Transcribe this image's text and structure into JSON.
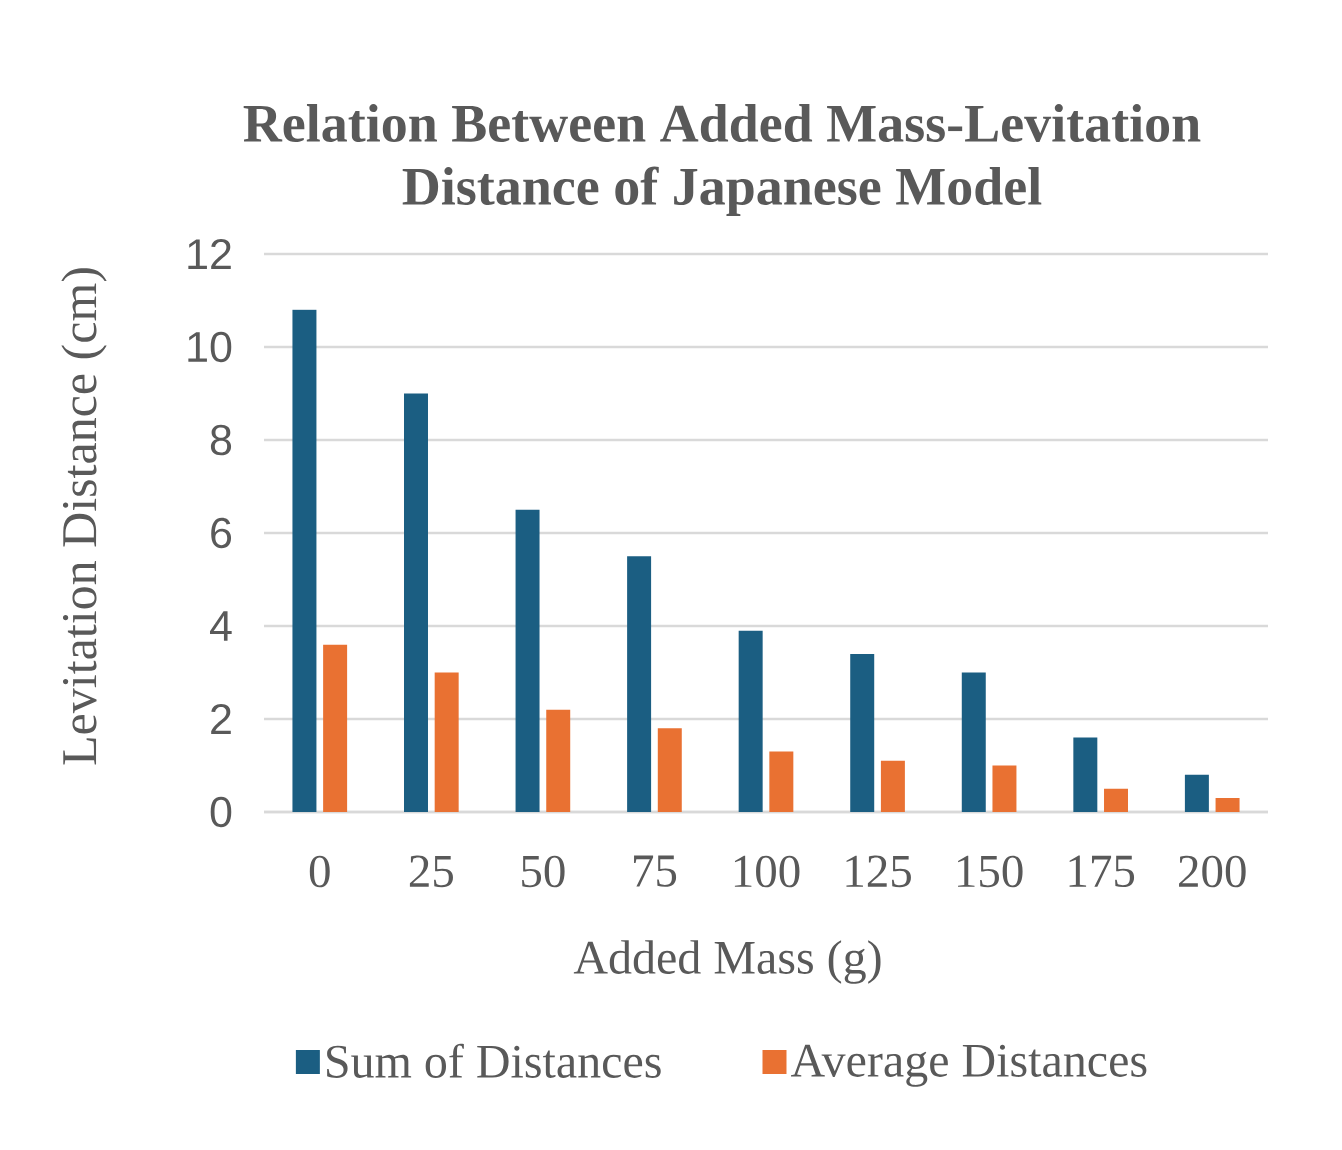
{
  "chart_data": {
    "type": "bar",
    "title": "Relation Between Added Mass-Levitation Distance of Japanese Model",
    "xlabel": "Added Mass (g)",
    "ylabel": "Levitation Distance (cm)",
    "categories": [
      "0",
      "25",
      "50",
      "75",
      "100",
      "125",
      "150",
      "175",
      "200"
    ],
    "series": [
      {
        "name": "Sum of Distances",
        "color": "#1b5e82",
        "values": [
          10.8,
          9.0,
          6.5,
          5.5,
          3.9,
          3.4,
          3.0,
          1.6,
          0.8
        ]
      },
      {
        "name": "Average Distances",
        "color": "#e97132",
        "values": [
          3.6,
          3.0,
          2.2,
          1.8,
          1.3,
          1.1,
          1.0,
          0.5,
          0.3
        ]
      }
    ],
    "ylim": [
      0,
      12
    ],
    "yticks": [
      0,
      2,
      4,
      6,
      8,
      10,
      12
    ],
    "grid": "y",
    "legend": "bottom"
  }
}
